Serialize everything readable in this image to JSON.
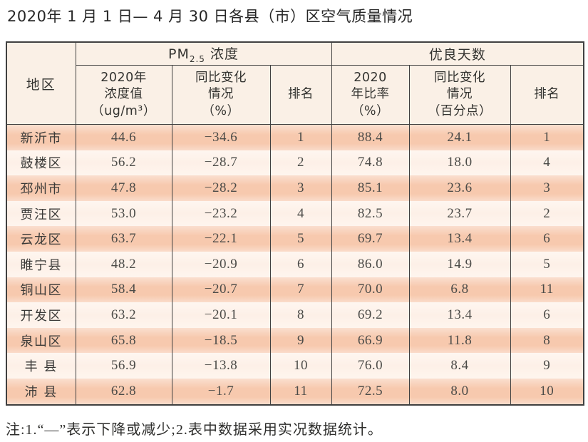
{
  "page": {
    "title": "2020年 1 月 1 日— 4 月 30 日各县（市）区空气质量情况",
    "footnote": "注:1.“—”表示下降或减少;2.表中数据采用实况数据统计。"
  },
  "colors": {
    "row_salmon": "#f7c9ae",
    "row_cream": "#fdf0e7",
    "header_bg": "#faf0e6",
    "border": "#404040",
    "text": "#3a3a38"
  },
  "table": {
    "header": {
      "region": "地区",
      "pm_group": {
        "prefix": "PM",
        "sub": "2.5",
        "suffix": " 浓度"
      },
      "good_group": "优良天数",
      "sub": [
        "2020年\n浓度值\n（ug/m³）",
        "同比变化\n情况\n（%）",
        "排名",
        "2020\n年比率\n（%）",
        "同比变化\n情况\n（百分点）",
        "排名"
      ]
    },
    "rows": [
      [
        "新沂市",
        "44.6",
        "−34.6",
        "1",
        "88.4",
        "24.1",
        "1"
      ],
      [
        "鼓楼区",
        "56.2",
        "−28.7",
        "2",
        "74.8",
        "18.0",
        "4"
      ],
      [
        "邳州市",
        "47.8",
        "−28.2",
        "3",
        "85.1",
        "23.6",
        "3"
      ],
      [
        "贾汪区",
        "53.0",
        "−23.2",
        "4",
        "82.5",
        "23.7",
        "2"
      ],
      [
        "云龙区",
        "63.7",
        "−22.1",
        "5",
        "69.7",
        "13.4",
        "6"
      ],
      [
        "睢宁县",
        "48.2",
        "−20.9",
        "6",
        "86.0",
        "14.9",
        "5"
      ],
      [
        "铜山区",
        "58.4",
        "−20.7",
        "7",
        "70.0",
        "6.8",
        "11"
      ],
      [
        "开发区",
        "63.2",
        "−20.1",
        "8",
        "69.2",
        "13.4",
        "6"
      ],
      [
        "泉山区",
        "65.8",
        "−18.5",
        "9",
        "66.9",
        "11.8",
        "8"
      ],
      [
        "丰 县",
        "56.9",
        "−13.8",
        "10",
        "76.0",
        "8.4",
        "9"
      ],
      [
        "沛 县",
        "62.8",
        "−1.7",
        "11",
        "72.5",
        "8.0",
        "10"
      ]
    ]
  },
  "chart_data": {
    "type": "table",
    "title": "2020年1月1日—4月30日各县（市）区空气质量情况",
    "columns": [
      "地区",
      "PM2.5浓度 2020年浓度值(ug/m³)",
      "PM2.5浓度 同比变化情况(%)",
      "PM2.5浓度 排名",
      "优良天数 2020年比率(%)",
      "优良天数 同比变化情况(百分点)",
      "优良天数 排名"
    ],
    "rows": [
      [
        "新沂市",
        44.6,
        -34.6,
        1,
        88.4,
        24.1,
        1
      ],
      [
        "鼓楼区",
        56.2,
        -28.7,
        2,
        74.8,
        18.0,
        4
      ],
      [
        "邳州市",
        47.8,
        -28.2,
        3,
        85.1,
        23.6,
        3
      ],
      [
        "贾汪区",
        53.0,
        -23.2,
        4,
        82.5,
        23.7,
        2
      ],
      [
        "云龙区",
        63.7,
        -22.1,
        5,
        69.7,
        13.4,
        6
      ],
      [
        "睢宁县",
        48.2,
        -20.9,
        6,
        86.0,
        14.9,
        5
      ],
      [
        "铜山区",
        58.4,
        -20.7,
        7,
        70.0,
        6.8,
        11
      ],
      [
        "开发区",
        63.2,
        -20.1,
        8,
        69.2,
        13.4,
        6
      ],
      [
        "泉山区",
        65.8,
        -18.5,
        9,
        66.9,
        11.8,
        8
      ],
      [
        "丰县",
        56.9,
        -13.8,
        10,
        76.0,
        8.4,
        9
      ],
      [
        "沛县",
        62.8,
        -1.7,
        11,
        72.5,
        8.0,
        10
      ]
    ]
  }
}
